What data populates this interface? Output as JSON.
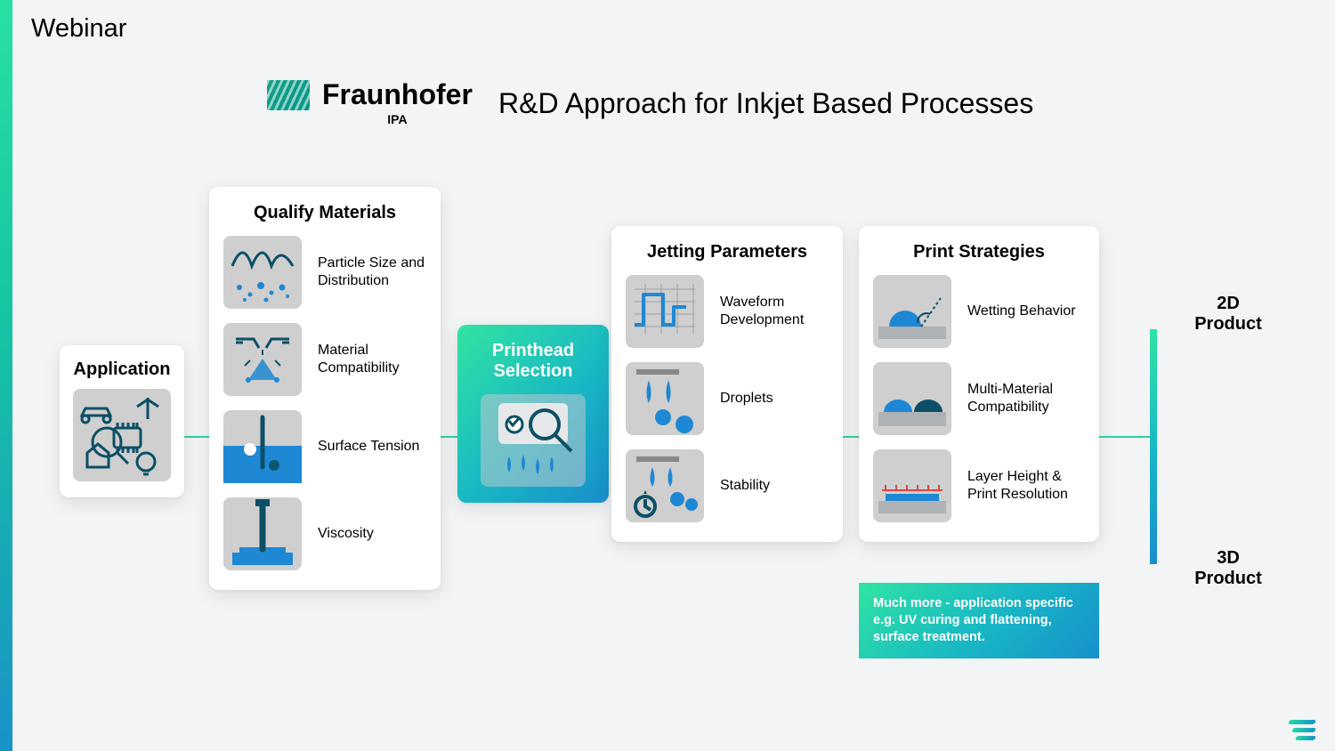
{
  "page": {
    "title": "Webinar"
  },
  "header": {
    "brand": "Fraunhofer",
    "subbrand": "IPA",
    "title": "R&D Approach for Inkjet Based Processes",
    "logo_gradient": [
      "#16a085",
      "#009688"
    ]
  },
  "colors": {
    "page_bg": "#f3f4f5",
    "card_bg": "#ffffff",
    "iconbox_bg": "#cfcfcf",
    "accent_gradient": [
      "#32e3a1",
      "#18b8c4",
      "#188ecb"
    ],
    "connector": "#2ed3a0",
    "stroke_teal": "#0b4f66",
    "stroke_blue": "#1e88d4",
    "fill_blue": "#1e88d4"
  },
  "application": {
    "title": "Application"
  },
  "qualify": {
    "title": "Qualify Materials",
    "items": [
      {
        "label": "Particle Size and Distribution"
      },
      {
        "label": "Material Compatibility"
      },
      {
        "label": "Surface Tension"
      },
      {
        "label": "Viscosity"
      }
    ]
  },
  "printhead": {
    "title": "Printhead Selection"
  },
  "jetting": {
    "title": "Jetting Parameters",
    "items": [
      {
        "label": "Waveform Development"
      },
      {
        "label": "Droplets"
      },
      {
        "label": "Stability"
      }
    ]
  },
  "strategies": {
    "title": "Print Strategies",
    "items": [
      {
        "label": "Wetting Behavior"
      },
      {
        "label": "Multi-Material Compatibility"
      },
      {
        "label": "Layer Height & Print Resolution"
      }
    ]
  },
  "note": "Much more - application specific e.g. UV curing and flattening, surface treatment.",
  "products": {
    "top": "2D Product",
    "bottom": "3D Product"
  }
}
